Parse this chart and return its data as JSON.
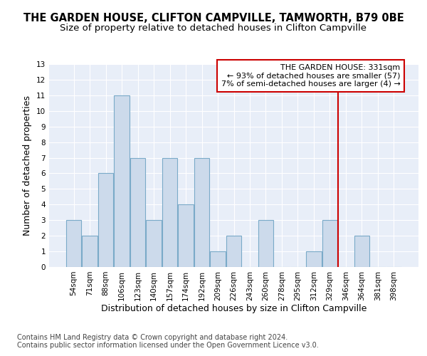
{
  "title1": "THE GARDEN HOUSE, CLIFTON CAMPVILLE, TAMWORTH, B79 0BE",
  "title2": "Size of property relative to detached houses in Clifton Campville",
  "xlabel": "Distribution of detached houses by size in Clifton Campville",
  "ylabel": "Number of detached properties",
  "footnote1": "Contains HM Land Registry data © Crown copyright and database right 2024.",
  "footnote2": "Contains public sector information licensed under the Open Government Licence v3.0.",
  "bin_labels": [
    "54sqm",
    "71sqm",
    "88sqm",
    "106sqm",
    "123sqm",
    "140sqm",
    "157sqm",
    "174sqm",
    "192sqm",
    "209sqm",
    "226sqm",
    "243sqm",
    "260sqm",
    "278sqm",
    "295sqm",
    "312sqm",
    "329sqm",
    "346sqm",
    "364sqm",
    "381sqm",
    "398sqm"
  ],
  "values": [
    3,
    2,
    6,
    11,
    7,
    3,
    7,
    4,
    7,
    1,
    2,
    0,
    3,
    0,
    0,
    1,
    3,
    0,
    2,
    0,
    0
  ],
  "bar_color": "#ccdaeb",
  "bar_edge_color": "#7aaac8",
  "highlight_line_color": "#cc0000",
  "annotation_text": "THE GARDEN HOUSE: 331sqm\n← 93% of detached houses are smaller (57)\n7% of semi-detached houses are larger (4) →",
  "annotation_box_color": "#cc0000",
  "bg_color": "#e8eef8",
  "ylim": [
    0,
    13
  ],
  "yticks": [
    0,
    1,
    2,
    3,
    4,
    5,
    6,
    7,
    8,
    9,
    10,
    11,
    12,
    13
  ],
  "grid_color": "#ffffff",
  "title_fontsize": 10.5,
  "subtitle_fontsize": 9.5,
  "axis_label_fontsize": 9,
  "tick_fontsize": 7.5,
  "annotation_fontsize": 8,
  "footnote_fontsize": 7
}
